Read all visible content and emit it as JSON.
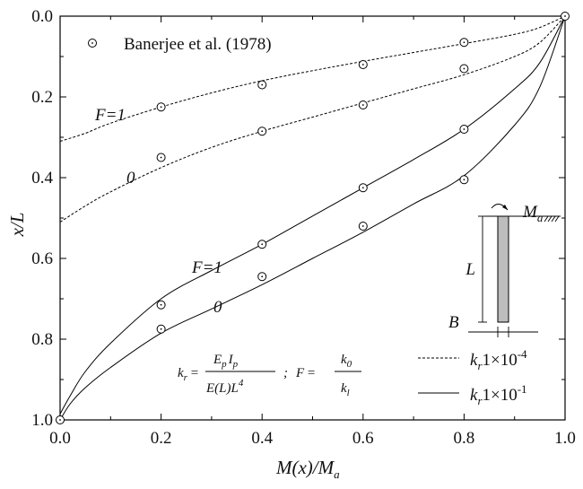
{
  "chart_data": {
    "type": "line",
    "xlabel": "M(x)/M",
    "xlabel_sub": "a",
    "ylabel": "x/L",
    "xlim": [
      0.0,
      1.0
    ],
    "ylim": [
      0.0,
      1.0
    ],
    "y_inverted": true,
    "x_ticks": [
      "0.0",
      "0.2",
      "0.4",
      "0.6",
      "0.8",
      "1.0"
    ],
    "y_ticks": [
      "0.0",
      "0.2",
      "0.4",
      "0.6",
      "0.8",
      "1.0"
    ],
    "grid": false,
    "legend_position": "inside",
    "series": [
      {
        "label": "F=1",
        "style": "dashed",
        "x": [
          0.0,
          0.05,
          0.1,
          0.2,
          0.3,
          0.4,
          0.5,
          0.6,
          0.7,
          0.8,
          0.9,
          0.95,
          1.0
        ],
        "y": [
          0.31,
          0.29,
          0.265,
          0.225,
          0.19,
          0.16,
          0.135,
          0.112,
          0.09,
          0.068,
          0.045,
          0.028,
          0.0
        ]
      },
      {
        "label": "0",
        "style": "dashed",
        "x": [
          0.0,
          0.05,
          0.1,
          0.2,
          0.3,
          0.4,
          0.5,
          0.6,
          0.7,
          0.8,
          0.9,
          0.95,
          1.0
        ],
        "y": [
          0.51,
          0.47,
          0.435,
          0.375,
          0.325,
          0.285,
          0.25,
          0.215,
          0.18,
          0.145,
          0.1,
          0.065,
          0.0
        ]
      },
      {
        "label": "F=1",
        "style": "solid",
        "x": [
          0.0,
          0.02,
          0.05,
          0.1,
          0.2,
          0.3,
          0.4,
          0.5,
          0.6,
          0.7,
          0.8,
          0.9,
          0.95,
          1.0
        ],
        "y": [
          0.985,
          0.94,
          0.88,
          0.81,
          0.7,
          0.63,
          0.565,
          0.495,
          0.425,
          0.355,
          0.28,
          0.18,
          0.115,
          0.0
        ]
      },
      {
        "label": "0",
        "style": "solid",
        "x": [
          0.0,
          0.02,
          0.05,
          0.1,
          0.2,
          0.3,
          0.4,
          0.5,
          0.6,
          0.7,
          0.8,
          0.9,
          0.95,
          1.0
        ],
        "y": [
          1.0,
          0.96,
          0.92,
          0.87,
          0.785,
          0.725,
          0.665,
          0.6,
          0.535,
          0.465,
          0.395,
          0.27,
          0.175,
          0.0
        ]
      }
    ],
    "scatter": {
      "label": "Banerjee et al. (1978)",
      "x": [
        0.2,
        0.2,
        0.2,
        0.2,
        0.4,
        0.4,
        0.4,
        0.4,
        0.6,
        0.6,
        0.6,
        0.6,
        0.8,
        0.8,
        0.8,
        0.8,
        1.0,
        0.0
      ],
      "y": [
        0.225,
        0.35,
        0.715,
        0.775,
        0.17,
        0.285,
        0.565,
        0.645,
        0.12,
        0.22,
        0.425,
        0.52,
        0.065,
        0.13,
        0.28,
        0.405,
        0.0,
        1.0
      ]
    },
    "legend": {
      "dashed_label": "1×10",
      "dashed_exp": "-4",
      "solid_label": "1×10",
      "solid_exp": "-1",
      "kr": "k",
      "kr_sub": "r"
    },
    "annotations": {
      "dashed_F1": "F=1",
      "dashed_0": "0",
      "solid_F1": "F=1",
      "solid_0": "0"
    },
    "inset": {
      "moment_label": "M",
      "moment_sub": "a",
      "length_label": "L",
      "width_label": "B"
    },
    "formula": {
      "kr": "k",
      "kr_sub": "r",
      "Ep": "E",
      "p1": "p",
      "Ip": "I",
      "p2": "p",
      "denom": "E(L)L",
      "denom_exp": "4",
      "sep": ";",
      "F": "F",
      "k0": "k",
      "k0_sub": "0",
      "kl": "k",
      "kl_sub": "l"
    }
  }
}
